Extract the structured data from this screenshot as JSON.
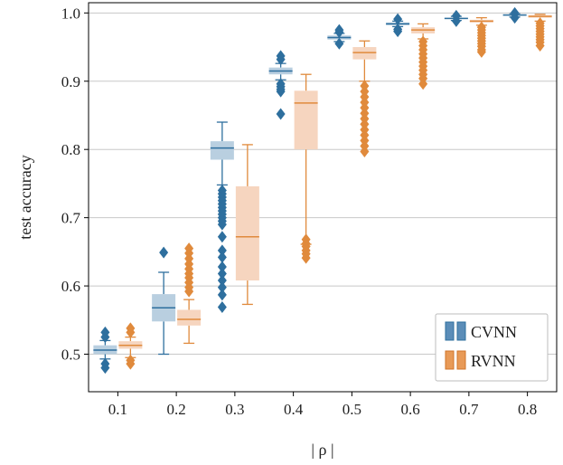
{
  "chart_data": {
    "type": "box",
    "xlabel": "| ρ |",
    "ylabel": "test accuracy",
    "categories": [
      "0.1",
      "0.2",
      "0.3",
      "0.4",
      "0.5",
      "0.6",
      "0.7",
      "0.8"
    ],
    "ylim": [
      0.445,
      1.015
    ],
    "yticks": [
      "0.5",
      "0.6",
      "0.7",
      "0.8",
      "0.9",
      "1.0"
    ],
    "grid": "horizontal",
    "legend_position": "bottom-right",
    "series": [
      {
        "name": "CVNN",
        "color": "#2e6f9e",
        "fill": "#b9cfe0",
        "boxes": [
          {
            "whisker_low": 0.493,
            "q1": 0.5,
            "median": 0.506,
            "q3": 0.513,
            "whisker_high": 0.52,
            "outliers": [
              0.532,
              0.525,
              0.486,
              0.48
            ]
          },
          {
            "whisker_low": 0.5,
            "q1": 0.548,
            "median": 0.568,
            "q3": 0.588,
            "whisker_high": 0.62,
            "outliers": [
              0.649
            ]
          },
          {
            "whisker_low": 0.748,
            "q1": 0.785,
            "median": 0.802,
            "q3": 0.812,
            "whisker_high": 0.84,
            "outliers": [
              0.74,
              0.735,
              0.73,
              0.725,
              0.72,
              0.715,
              0.71,
              0.705,
              0.7,
              0.695,
              0.69,
              0.672,
              0.652,
              0.642,
              0.628,
              0.618,
              0.608,
              0.598,
              0.587,
              0.569
            ]
          },
          {
            "whisker_low": 0.902,
            "q1": 0.91,
            "median": 0.915,
            "q3": 0.92,
            "whisker_high": 0.926,
            "outliers": [
              0.937,
              0.932,
              0.896,
              0.892,
              0.888,
              0.885,
              0.852
            ]
          },
          {
            "whisker_low": 0.958,
            "q1": 0.961,
            "median": 0.964,
            "q3": 0.967,
            "whisker_high": 0.97,
            "outliers": [
              0.975,
              0.972,
              0.955
            ]
          },
          {
            "whisker_low": 0.98,
            "q1": 0.982,
            "median": 0.984,
            "q3": 0.986,
            "whisker_high": 0.988,
            "outliers": [
              0.991,
              0.976,
              0.973
            ]
          },
          {
            "whisker_low": 0.989,
            "q1": 0.991,
            "median": 0.992,
            "q3": 0.993,
            "whisker_high": 0.995,
            "outliers": [
              0.996,
              0.988
            ]
          },
          {
            "whisker_low": 0.994,
            "q1": 0.996,
            "median": 0.997,
            "q3": 0.998,
            "whisker_high": 0.999,
            "outliers": [
              1.0,
              0.993
            ]
          }
        ]
      },
      {
        "name": "RVNN",
        "color": "#e08a3c",
        "fill": "#f6d5bf",
        "boxes": [
          {
            "whisker_low": 0.495,
            "q1": 0.508,
            "median": 0.513,
            "q3": 0.519,
            "whisker_high": 0.525,
            "outliers": [
              0.538,
              0.532,
              0.491,
              0.486
            ]
          },
          {
            "whisker_low": 0.516,
            "q1": 0.542,
            "median": 0.551,
            "q3": 0.565,
            "whisker_high": 0.58,
            "outliers": [
              0.655,
              0.648,
              0.64,
              0.632,
              0.625,
              0.618,
              0.612,
              0.605,
              0.598,
              0.592
            ]
          },
          {
            "whisker_low": 0.573,
            "q1": 0.608,
            "median": 0.672,
            "q3": 0.746,
            "whisker_high": 0.807,
            "outliers": []
          },
          {
            "whisker_low": 0.661,
            "q1": 0.8,
            "median": 0.868,
            "q3": 0.886,
            "whisker_high": 0.91,
            "outliers": [
              0.668,
              0.662,
              0.658,
              0.652,
              0.647,
              0.641
            ]
          },
          {
            "whisker_low": 0.9,
            "q1": 0.932,
            "median": 0.942,
            "q3": 0.95,
            "whisker_high": 0.959,
            "outliers": [
              0.893,
              0.885,
              0.877,
              0.869,
              0.861,
              0.853,
              0.845,
              0.837,
              0.829,
              0.821,
              0.813,
              0.805,
              0.797
            ]
          },
          {
            "whisker_low": 0.962,
            "q1": 0.97,
            "median": 0.975,
            "q3": 0.979,
            "whisker_high": 0.984,
            "outliers": [
              0.958,
              0.952,
              0.946,
              0.94,
              0.934,
              0.928,
              0.922,
              0.916,
              0.91,
              0.904,
              0.896
            ]
          },
          {
            "whisker_low": 0.982,
            "q1": 0.986,
            "median": 0.988,
            "q3": 0.99,
            "whisker_high": 0.993,
            "outliers": [
              0.979,
              0.975,
              0.971,
              0.967,
              0.963,
              0.959,
              0.955,
              0.951,
              0.946,
              0.943
            ]
          },
          {
            "whisker_low": 0.988,
            "q1": 0.993,
            "median": 0.995,
            "q3": 0.997,
            "whisker_high": 0.998,
            "outliers": [
              0.985,
              0.981,
              0.977,
              0.973,
              0.969,
              0.965,
              0.961,
              0.957,
              0.952
            ]
          }
        ]
      }
    ]
  }
}
